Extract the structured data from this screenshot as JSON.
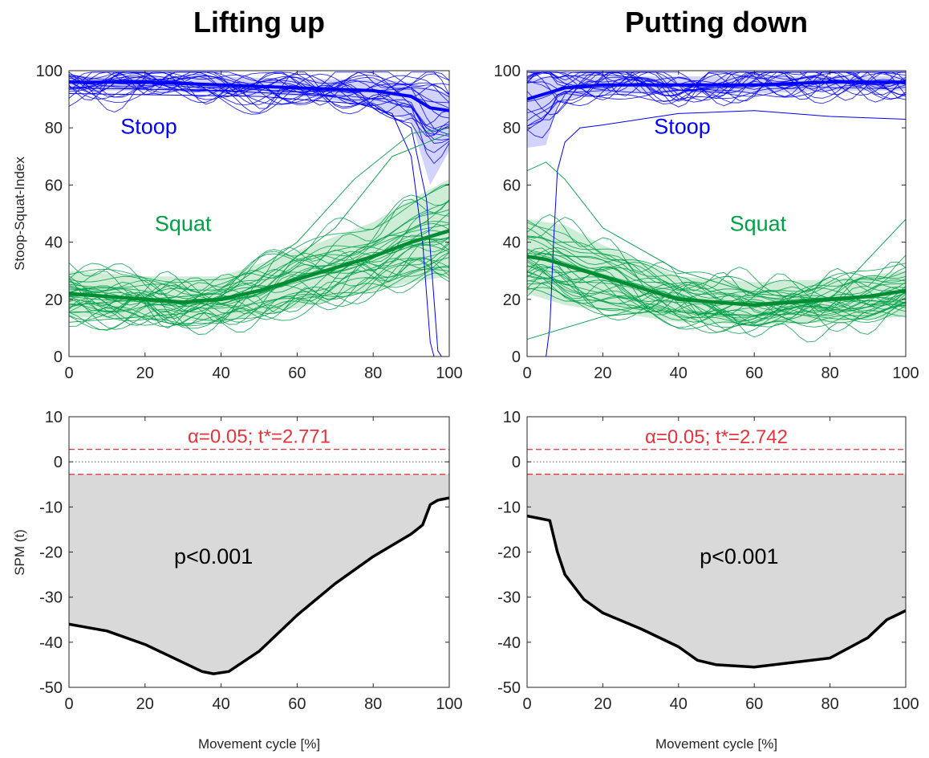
{
  "colors": {
    "stoop": "#0000ff",
    "stoop_band": "#c8c8ff",
    "squat": "#00a046",
    "squat_dark": "#008c32",
    "squat_band": "#bfe6c8",
    "threshold": "#e8323a",
    "spm_fill": "#d9d9d9",
    "spm_line": "#000000"
  },
  "chart_data": [
    {
      "id": "lift-traj",
      "type": "line",
      "title": "Lifting up",
      "xlabel": "",
      "ylabel": "Stoop-Squat-Index",
      "xlim": [
        0,
        100
      ],
      "ylim": [
        0,
        100
      ],
      "xticks": [
        "0",
        "20",
        "40",
        "60",
        "80",
        "100"
      ],
      "yticks": [
        "0",
        "20",
        "40",
        "60",
        "80",
        "100"
      ],
      "annotations": [
        {
          "text": "Stoop",
          "x": 21,
          "y": 78,
          "color": "stoop"
        },
        {
          "text": "Squat",
          "x": 30,
          "y": 44,
          "color": "squat"
        }
      ],
      "series": [
        {
          "group": "stoop",
          "role": "mean",
          "x": [
            0,
            20,
            40,
            60,
            80,
            90,
            95,
            100
          ],
          "y": [
            96,
            96,
            95,
            94,
            93,
            91,
            87,
            86
          ]
        },
        {
          "group": "stoop",
          "role": "band_upper",
          "x": [
            0,
            20,
            40,
            60,
            80,
            90,
            95,
            100
          ],
          "y": [
            98,
            98,
            98,
            97,
            97,
            96,
            94,
            92
          ]
        },
        {
          "group": "stoop",
          "role": "band_lower",
          "x": [
            0,
            20,
            40,
            60,
            80,
            90,
            95,
            100
          ],
          "y": [
            93,
            93,
            92,
            91,
            88,
            82,
            60,
            72
          ]
        },
        {
          "group": "squat",
          "role": "mean",
          "x": [
            0,
            10,
            20,
            30,
            40,
            50,
            60,
            70,
            80,
            90,
            100
          ],
          "y": [
            22,
            21,
            20,
            19,
            20,
            23,
            27,
            31,
            35,
            40,
            44
          ]
        },
        {
          "group": "squat",
          "role": "band_upper",
          "x": [
            0,
            20,
            40,
            60,
            80,
            90,
            100
          ],
          "y": [
            30,
            28,
            28,
            37,
            47,
            55,
            62
          ]
        },
        {
          "group": "squat",
          "role": "band_lower",
          "x": [
            0,
            20,
            40,
            60,
            80,
            90,
            100
          ],
          "y": [
            14,
            13,
            12,
            17,
            23,
            26,
            28
          ]
        }
      ]
    },
    {
      "id": "put-traj",
      "type": "line",
      "title": "Putting down",
      "xlabel": "",
      "ylabel": "",
      "xlim": [
        0,
        100
      ],
      "ylim": [
        0,
        100
      ],
      "xticks": [
        "0",
        "20",
        "40",
        "60",
        "80",
        "100"
      ],
      "yticks": [
        "0",
        "20",
        "40",
        "60",
        "80",
        "100"
      ],
      "annotations": [
        {
          "text": "Stoop",
          "x": 41,
          "y": 78,
          "color": "stoop"
        },
        {
          "text": "Squat",
          "x": 61,
          "y": 44,
          "color": "squat"
        }
      ],
      "series": [
        {
          "group": "stoop",
          "role": "mean",
          "x": [
            0,
            5,
            10,
            20,
            40,
            60,
            80,
            100
          ],
          "y": [
            90,
            92,
            94,
            95,
            95,
            95,
            96,
            96
          ]
        },
        {
          "group": "stoop",
          "role": "band_upper",
          "x": [
            0,
            5,
            10,
            20,
            40,
            60,
            80,
            100
          ],
          "y": [
            97,
            98,
            98,
            98,
            98,
            98,
            98,
            98
          ]
        },
        {
          "group": "stoop",
          "role": "band_lower",
          "x": [
            0,
            5,
            8,
            10,
            20,
            40,
            60,
            80,
            100
          ],
          "y": [
            73,
            74,
            88,
            90,
            92,
            92,
            92,
            93,
            93
          ]
        },
        {
          "group": "squat",
          "role": "mean",
          "x": [
            0,
            5,
            10,
            20,
            30,
            40,
            50,
            60,
            70,
            80,
            90,
            100
          ],
          "y": [
            35,
            34,
            32,
            28,
            24,
            20,
            19,
            18,
            19,
            20,
            21,
            23
          ]
        },
        {
          "group": "squat",
          "role": "band_upper",
          "x": [
            0,
            10,
            20,
            40,
            60,
            80,
            100
          ],
          "y": [
            48,
            46,
            39,
            28,
            26,
            27,
            30
          ]
        },
        {
          "group": "squat",
          "role": "band_lower",
          "x": [
            0,
            10,
            20,
            40,
            60,
            80,
            100
          ],
          "y": [
            22,
            18,
            16,
            12,
            11,
            12,
            14
          ]
        }
      ]
    },
    {
      "id": "lift-spm",
      "type": "area",
      "title": "",
      "xlabel": "Movement cycle [%]",
      "ylabel": "SPM (t)",
      "xlim": [
        0,
        100
      ],
      "ylim": [
        -50,
        10
      ],
      "xticks": [
        "0",
        "20",
        "40",
        "60",
        "80",
        "100"
      ],
      "yticks": [
        "10",
        "0",
        "-10",
        "-20",
        "-30",
        "-40",
        "-50"
      ],
      "threshold_label": "α=0.05; t*=2.771",
      "threshold": 2.771,
      "cluster_label": "p<0.001",
      "cluster_label_pos": {
        "x": 38,
        "y": -21
      },
      "series": [
        {
          "name": "",
          "x": [
            0,
            10,
            20,
            30,
            35,
            38,
            42,
            50,
            60,
            70,
            80,
            90,
            93,
            95,
            97,
            100
          ],
          "y": [
            -36,
            -37.5,
            -40.5,
            -44.5,
            -46.5,
            -47,
            -46.5,
            -42,
            -34,
            -27,
            -21,
            -16,
            -14,
            -9.5,
            -8.5,
            -8
          ]
        }
      ]
    },
    {
      "id": "put-spm",
      "type": "area",
      "title": "",
      "xlabel": "Movement cycle [%]",
      "ylabel": "",
      "xlim": [
        0,
        100
      ],
      "ylim": [
        -50,
        10
      ],
      "xticks": [
        "0",
        "20",
        "40",
        "60",
        "80",
        "100"
      ],
      "yticks": [
        "10",
        "0",
        "-10",
        "-20",
        "-30",
        "-40",
        "-50"
      ],
      "threshold_label": "α=0.05; t*=2.742",
      "threshold": 2.742,
      "cluster_label": "p<0.001",
      "cluster_label_pos": {
        "x": 56,
        "y": -21
      },
      "series": [
        {
          "name": "",
          "x": [
            0,
            3,
            6,
            8,
            10,
            15,
            20,
            30,
            40,
            45,
            50,
            60,
            70,
            80,
            90,
            95,
            100
          ],
          "y": [
            -12,
            -12.5,
            -13,
            -20,
            -25,
            -30.5,
            -33.5,
            -37,
            -41,
            -44,
            -45,
            -45.5,
            -44.5,
            -43.5,
            -39,
            -35,
            -33
          ]
        }
      ]
    }
  ]
}
